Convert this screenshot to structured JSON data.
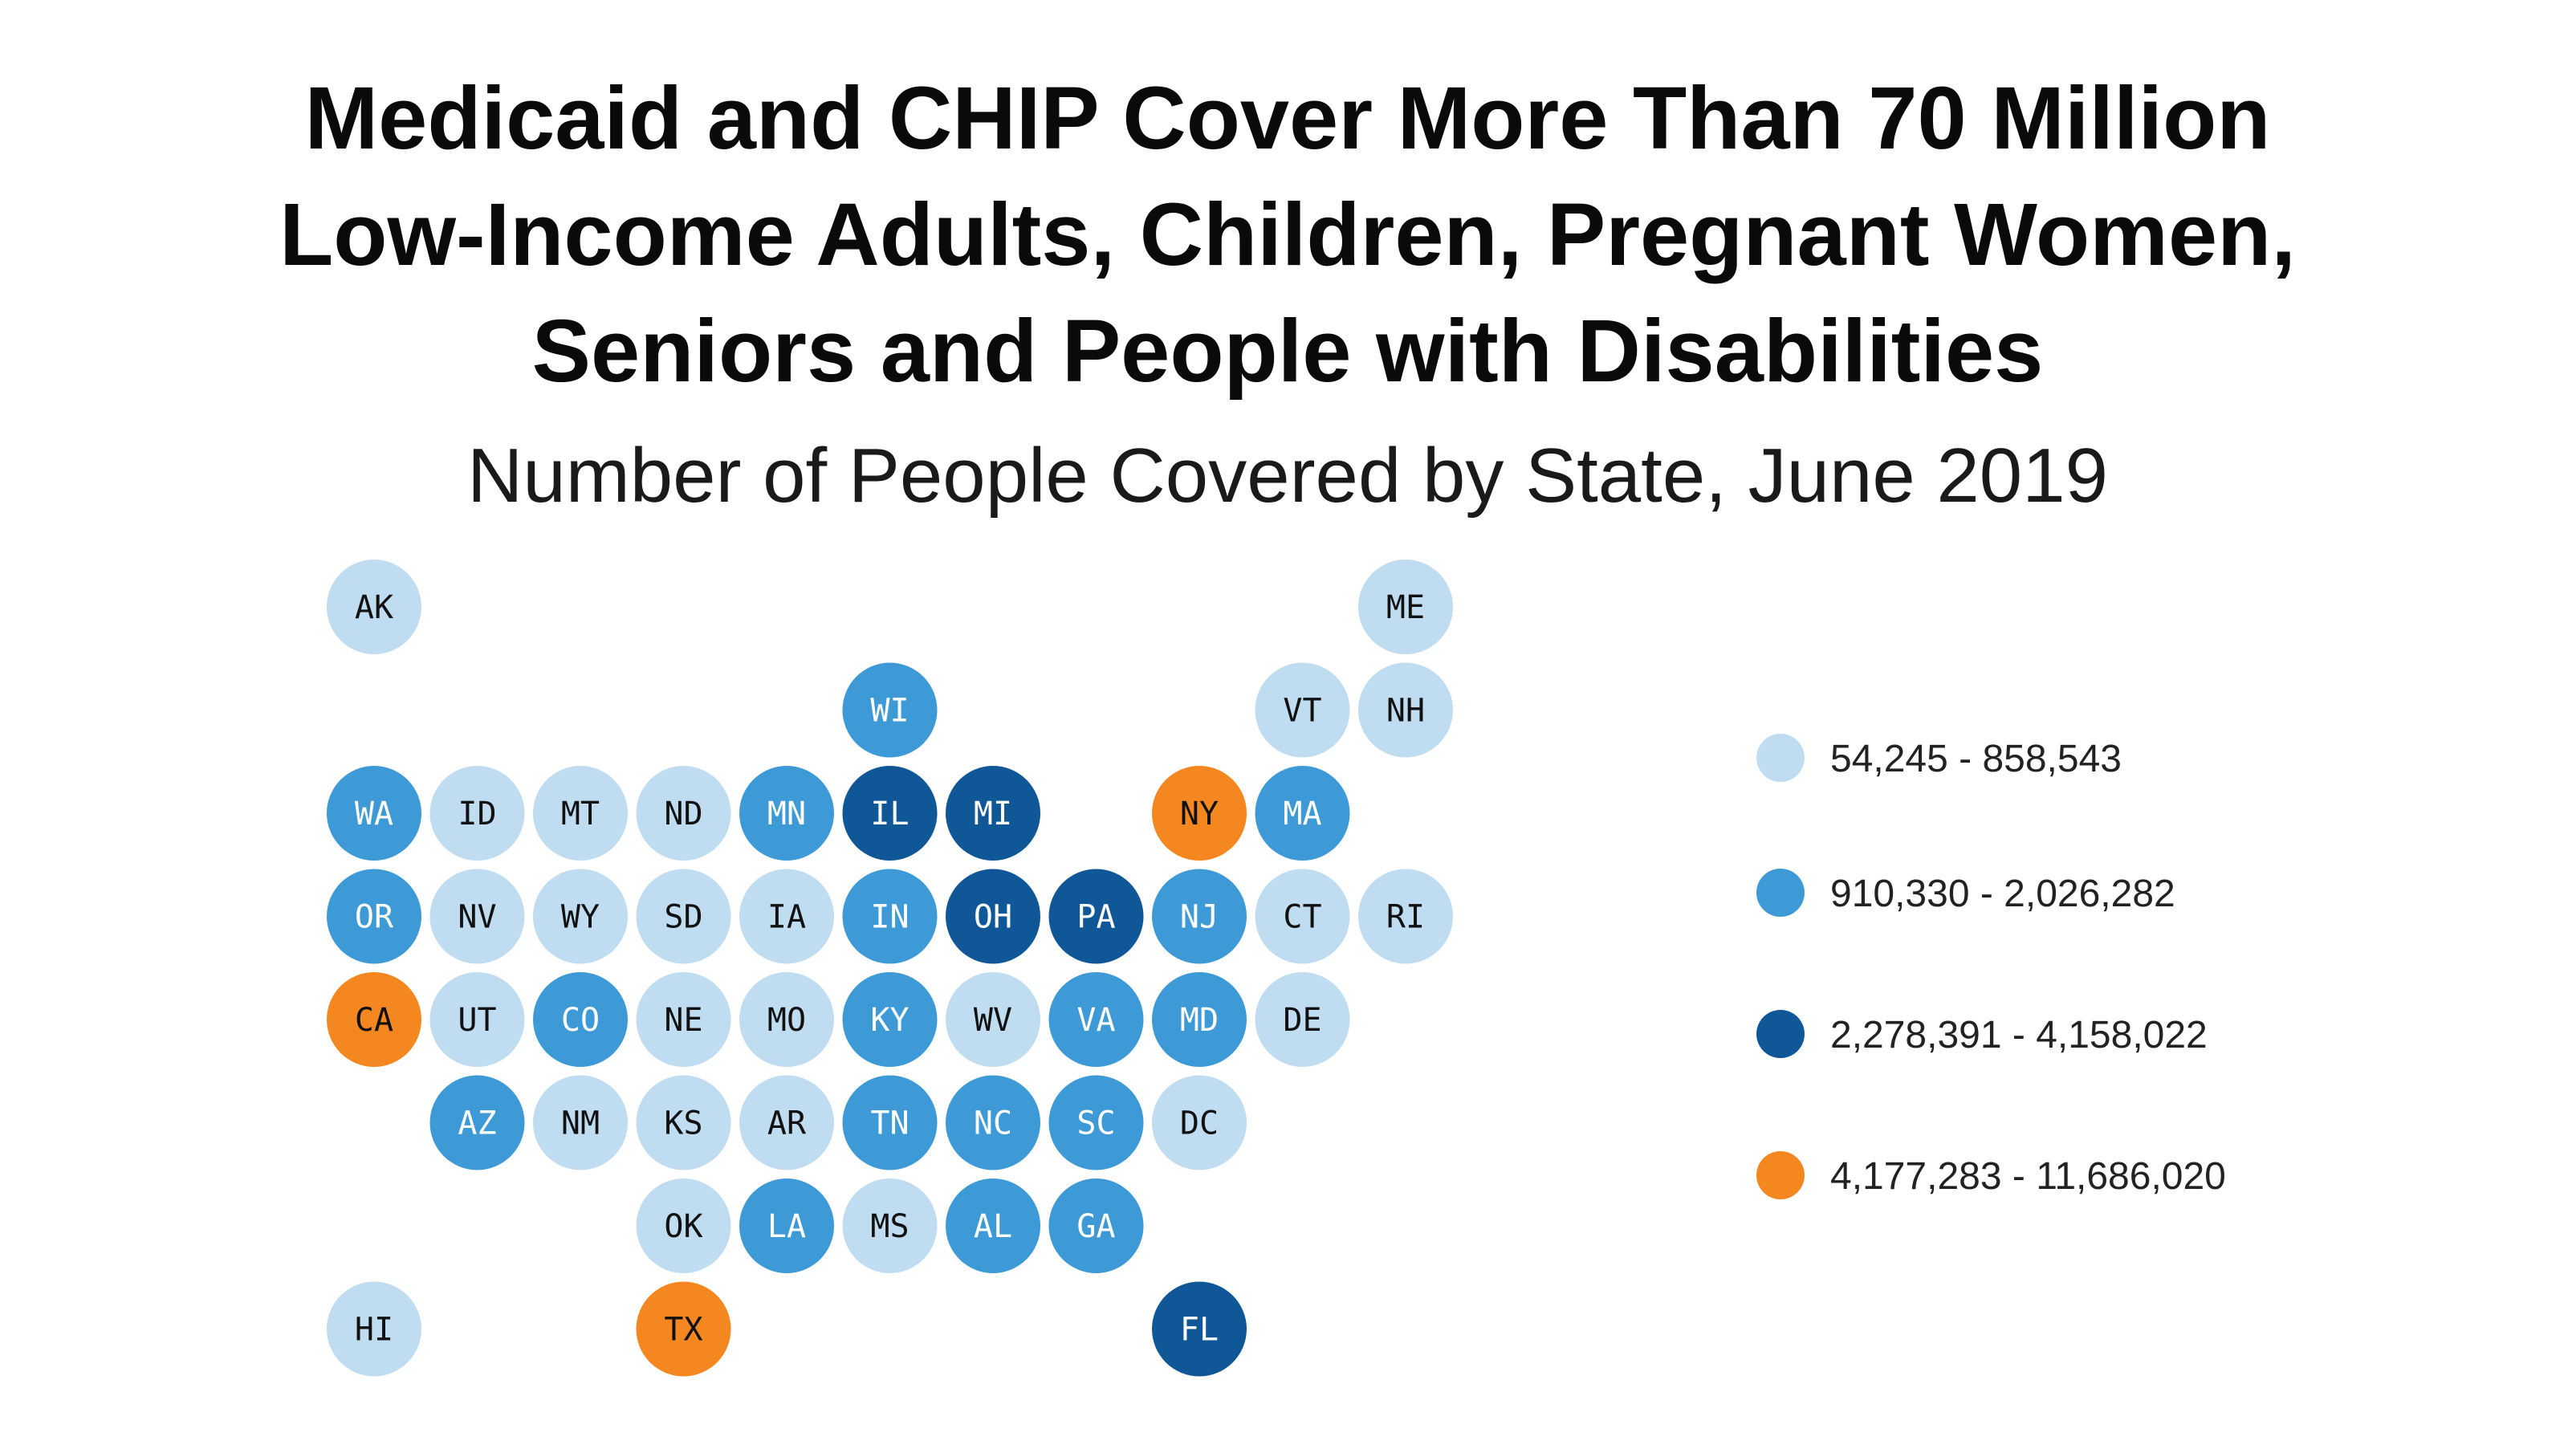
{
  "chart_data": {
    "type": "tile-map",
    "title_lines": [
      "Medicaid and CHIP Cover More Than 70 Million",
      "Low-Income Adults, Children, Pregnant Women,",
      "Seniors and People with Disabilities"
    ],
    "subtitle": "Number of People Covered by State, June 2019",
    "legend": [
      {
        "label": "54,245 - 858,543",
        "color": "#bfdcf1"
      },
      {
        "label": "910,330 - 2,026,282",
        "color": "#3d9ad6"
      },
      {
        "label": "2,278,391 - 4,158,022",
        "color": "#0f5797"
      },
      {
        "label": "4,177,283 - 11,686,020",
        "color": "#f58720"
      }
    ],
    "states": [
      {
        "abbr": "AK",
        "col": 0,
        "row": 0,
        "bin": 0
      },
      {
        "abbr": "ME",
        "col": 10,
        "row": 0,
        "bin": 0
      },
      {
        "abbr": "WI",
        "col": 5,
        "row": 1,
        "bin": 1
      },
      {
        "abbr": "VT",
        "col": 9,
        "row": 1,
        "bin": 0
      },
      {
        "abbr": "NH",
        "col": 10,
        "row": 1,
        "bin": 0
      },
      {
        "abbr": "WA",
        "col": 0,
        "row": 2,
        "bin": 1
      },
      {
        "abbr": "ID",
        "col": 1,
        "row": 2,
        "bin": 0
      },
      {
        "abbr": "MT",
        "col": 2,
        "row": 2,
        "bin": 0
      },
      {
        "abbr": "ND",
        "col": 3,
        "row": 2,
        "bin": 0
      },
      {
        "abbr": "MN",
        "col": 4,
        "row": 2,
        "bin": 1
      },
      {
        "abbr": "IL",
        "col": 5,
        "row": 2,
        "bin": 2
      },
      {
        "abbr": "MI",
        "col": 6,
        "row": 2,
        "bin": 2
      },
      {
        "abbr": "NY",
        "col": 8,
        "row": 2,
        "bin": 3
      },
      {
        "abbr": "MA",
        "col": 9,
        "row": 2,
        "bin": 1
      },
      {
        "abbr": "OR",
        "col": 0,
        "row": 3,
        "bin": 1
      },
      {
        "abbr": "NV",
        "col": 1,
        "row": 3,
        "bin": 0
      },
      {
        "abbr": "WY",
        "col": 2,
        "row": 3,
        "bin": 0
      },
      {
        "abbr": "SD",
        "col": 3,
        "row": 3,
        "bin": 0
      },
      {
        "abbr": "IA",
        "col": 4,
        "row": 3,
        "bin": 0
      },
      {
        "abbr": "IN",
        "col": 5,
        "row": 3,
        "bin": 1
      },
      {
        "abbr": "OH",
        "col": 6,
        "row": 3,
        "bin": 2
      },
      {
        "abbr": "PA",
        "col": 7,
        "row": 3,
        "bin": 2
      },
      {
        "abbr": "NJ",
        "col": 8,
        "row": 3,
        "bin": 1
      },
      {
        "abbr": "CT",
        "col": 9,
        "row": 3,
        "bin": 0
      },
      {
        "abbr": "RI",
        "col": 10,
        "row": 3,
        "bin": 0
      },
      {
        "abbr": "CA",
        "col": 0,
        "row": 4,
        "bin": 3
      },
      {
        "abbr": "UT",
        "col": 1,
        "row": 4,
        "bin": 0
      },
      {
        "abbr": "CO",
        "col": 2,
        "row": 4,
        "bin": 1
      },
      {
        "abbr": "NE",
        "col": 3,
        "row": 4,
        "bin": 0
      },
      {
        "abbr": "MO",
        "col": 4,
        "row": 4,
        "bin": 0
      },
      {
        "abbr": "KY",
        "col": 5,
        "row": 4,
        "bin": 1
      },
      {
        "abbr": "WV",
        "col": 6,
        "row": 4,
        "bin": 0
      },
      {
        "abbr": "VA",
        "col": 7,
        "row": 4,
        "bin": 1
      },
      {
        "abbr": "MD",
        "col": 8,
        "row": 4,
        "bin": 1
      },
      {
        "abbr": "DE",
        "col": 9,
        "row": 4,
        "bin": 0
      },
      {
        "abbr": "AZ",
        "col": 1,
        "row": 5,
        "bin": 1
      },
      {
        "abbr": "NM",
        "col": 2,
        "row": 5,
        "bin": 0
      },
      {
        "abbr": "KS",
        "col": 3,
        "row": 5,
        "bin": 0
      },
      {
        "abbr": "AR",
        "col": 4,
        "row": 5,
        "bin": 0
      },
      {
        "abbr": "TN",
        "col": 5,
        "row": 5,
        "bin": 1
      },
      {
        "abbr": "NC",
        "col": 6,
        "row": 5,
        "bin": 1
      },
      {
        "abbr": "SC",
        "col": 7,
        "row": 5,
        "bin": 1
      },
      {
        "abbr": "DC",
        "col": 8,
        "row": 5,
        "bin": 0
      },
      {
        "abbr": "OK",
        "col": 3,
        "row": 6,
        "bin": 0
      },
      {
        "abbr": "LA",
        "col": 4,
        "row": 6,
        "bin": 1
      },
      {
        "abbr": "MS",
        "col": 5,
        "row": 6,
        "bin": 0
      },
      {
        "abbr": "AL",
        "col": 6,
        "row": 6,
        "bin": 1
      },
      {
        "abbr": "GA",
        "col": 7,
        "row": 6,
        "bin": 1
      },
      {
        "abbr": "HI",
        "col": 0,
        "row": 7,
        "bin": 0
      },
      {
        "abbr": "TX",
        "col": 3,
        "row": 7,
        "bin": 3
      },
      {
        "abbr": "FL",
        "col": 8,
        "row": 7,
        "bin": 2
      }
    ]
  }
}
